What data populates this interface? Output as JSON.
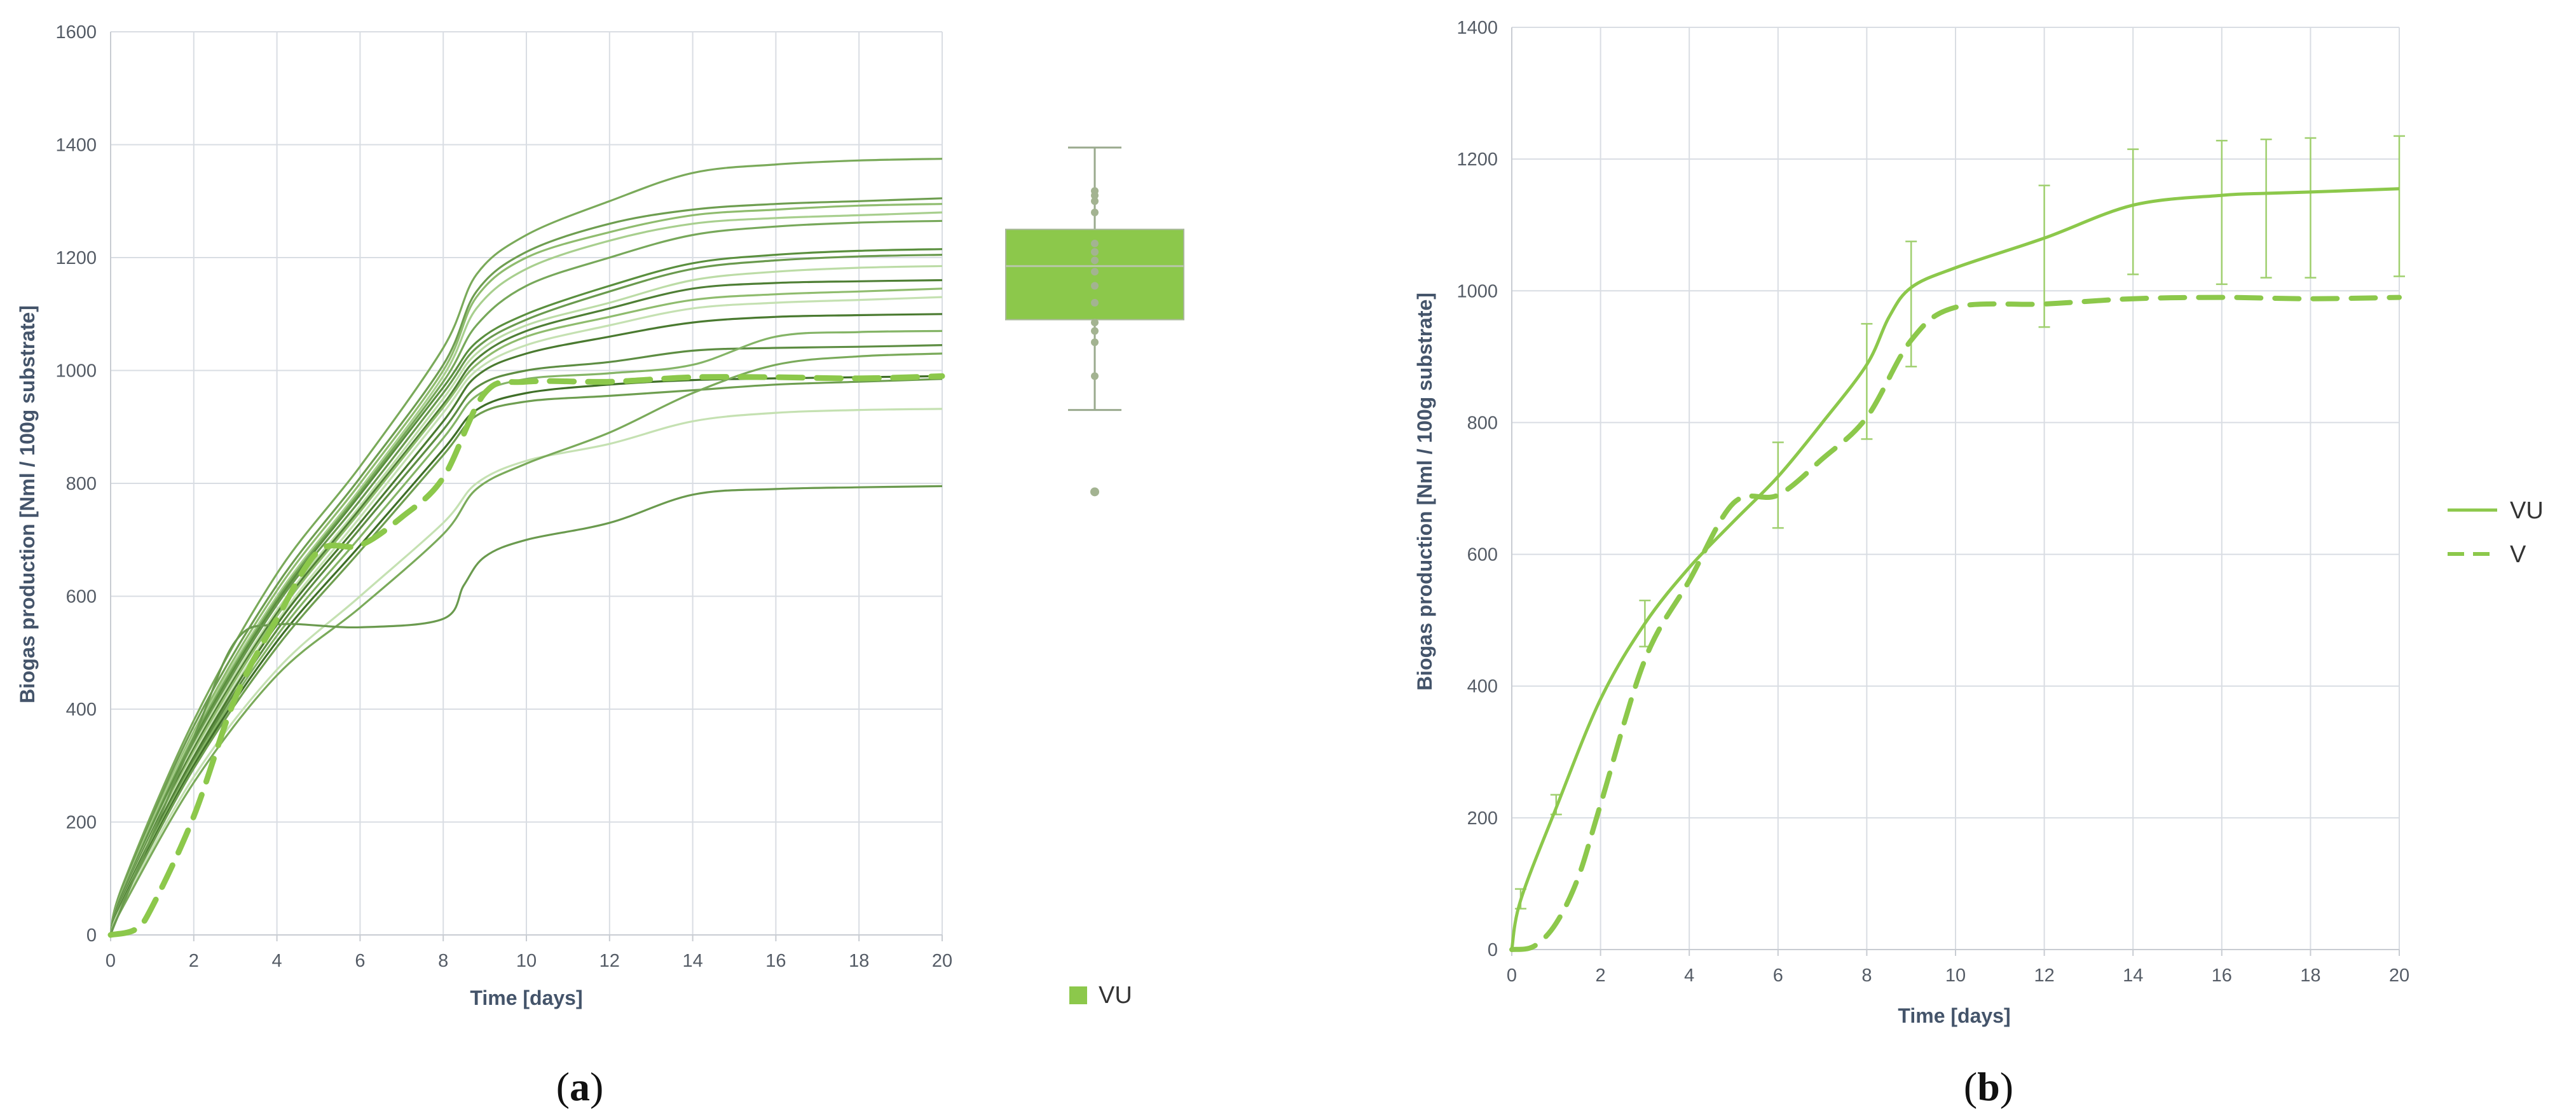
{
  "chart_data": [
    {
      "panel": "(a)",
      "type": "line",
      "title": "",
      "xlabel": "Time [days]",
      "ylabel": "Biogas production [Nml / 100g substrate]",
      "xlim": [
        0,
        20
      ],
      "ylim": [
        0,
        1600
      ],
      "xticks": [
        0,
        2,
        4,
        6,
        8,
        10,
        12,
        14,
        16,
        18,
        20
      ],
      "yticks": [
        0,
        200,
        400,
        600,
        800,
        1000,
        1200,
        1400,
        1600
      ],
      "grid": true,
      "legend": {
        "position": "bottom-right",
        "entries": [
          "VU"
        ]
      },
      "replicate_series": [
        {
          "color": "#7aaa5a",
          "x": [
            0,
            0.3,
            2,
            4,
            6,
            8,
            8.8,
            10,
            12,
            14,
            16,
            18,
            20
          ],
          "y": [
            0,
            90,
            380,
            640,
            830,
            1040,
            1170,
            1240,
            1300,
            1350,
            1365,
            1372,
            1375
          ]
        },
        {
          "color": "#6e9e50",
          "x": [
            0,
            0.3,
            2,
            4,
            6,
            8,
            8.8,
            10,
            12,
            14,
            16,
            18,
            20
          ],
          "y": [
            0,
            85,
            370,
            620,
            810,
            1010,
            1140,
            1210,
            1260,
            1285,
            1295,
            1300,
            1305
          ]
        },
        {
          "color": "#8fbc6e",
          "x": [
            0,
            0.3,
            2,
            4,
            6,
            8,
            8.8,
            10,
            12,
            14,
            16,
            18,
            20
          ],
          "y": [
            0,
            80,
            360,
            610,
            800,
            1000,
            1130,
            1200,
            1245,
            1275,
            1285,
            1292,
            1295
          ]
        },
        {
          "color": "#a8cf8e",
          "x": [
            0,
            0.3,
            2,
            4,
            6,
            8,
            8.8,
            10,
            12,
            14,
            16,
            18,
            20
          ],
          "y": [
            0,
            80,
            355,
            600,
            790,
            990,
            1110,
            1180,
            1230,
            1260,
            1270,
            1275,
            1280
          ]
        },
        {
          "color": "#77a85a",
          "x": [
            0,
            0.3,
            2,
            4,
            6,
            8,
            8.8,
            10,
            12,
            14,
            16,
            18,
            20
          ],
          "y": [
            0,
            78,
            350,
            595,
            785,
            980,
            1080,
            1150,
            1200,
            1240,
            1255,
            1262,
            1265
          ]
        },
        {
          "color": "#5a8f3e",
          "x": [
            0,
            0.3,
            2,
            4,
            6,
            8,
            8.8,
            10,
            12,
            14,
            16,
            18,
            20
          ],
          "y": [
            0,
            75,
            345,
            590,
            780,
            970,
            1050,
            1100,
            1150,
            1190,
            1205,
            1212,
            1215
          ]
        },
        {
          "color": "#6a9a4e",
          "x": [
            0,
            0.3,
            2,
            4,
            6,
            8,
            8.8,
            10,
            12,
            14,
            16,
            18,
            20
          ],
          "y": [
            0,
            75,
            340,
            585,
            770,
            960,
            1040,
            1090,
            1140,
            1180,
            1195,
            1202,
            1205
          ]
        },
        {
          "color": "#bcdca6",
          "x": [
            0,
            0.3,
            2,
            4,
            6,
            8,
            8.8,
            10,
            12,
            14,
            16,
            18,
            20
          ],
          "y": [
            0,
            72,
            335,
            575,
            760,
            950,
            1030,
            1080,
            1120,
            1160,
            1175,
            1182,
            1185
          ]
        },
        {
          "color": "#4f7f35",
          "x": [
            0,
            0.3,
            2,
            4,
            6,
            8,
            8.8,
            10,
            12,
            14,
            16,
            18,
            20
          ],
          "y": [
            0,
            72,
            330,
            570,
            755,
            940,
            1020,
            1070,
            1110,
            1145,
            1155,
            1158,
            1160
          ]
        },
        {
          "color": "#8fbc6e",
          "x": [
            0,
            0.3,
            2,
            4,
            6,
            8,
            8.8,
            10,
            12,
            14,
            16,
            18,
            20
          ],
          "y": [
            0,
            70,
            325,
            565,
            750,
            935,
            1010,
            1060,
            1095,
            1125,
            1135,
            1140,
            1145
          ]
        },
        {
          "color": "#c5e1b2",
          "x": [
            0,
            0.3,
            2,
            4,
            6,
            8,
            8.8,
            10,
            12,
            14,
            16,
            18,
            20
          ],
          "y": [
            0,
            68,
            320,
            555,
            740,
            925,
            1000,
            1045,
            1080,
            1110,
            1120,
            1125,
            1130
          ]
        },
        {
          "color": "#4a7a30",
          "x": [
            0,
            0.3,
            2,
            4,
            6,
            8,
            8.8,
            10,
            12,
            14,
            16,
            18,
            20
          ],
          "y": [
            0,
            68,
            315,
            550,
            730,
            910,
            990,
            1030,
            1060,
            1085,
            1095,
            1098,
            1100
          ]
        },
        {
          "color": "#5d8d42",
          "x": [
            0,
            0.3,
            2,
            4,
            6,
            8,
            8.8,
            10,
            12,
            14,
            16,
            18,
            20
          ],
          "y": [
            0,
            66,
            310,
            540,
            720,
            895,
            970,
            1000,
            1015,
            1035,
            1040,
            1042,
            1045
          ]
        },
        {
          "color": "#84b466",
          "x": [
            0,
            0.3,
            2,
            4,
            6,
            8,
            8.8,
            10,
            12,
            14,
            16,
            18,
            20
          ],
          "y": [
            0,
            65,
            305,
            530,
            705,
            880,
            955,
            985,
            995,
            1010,
            1060,
            1068,
            1070
          ]
        },
        {
          "color": "#3f6f28",
          "x": [
            0,
            0.3,
            2,
            4,
            6,
            8,
            8.8,
            10,
            12,
            14,
            16,
            18,
            20
          ],
          "y": [
            0,
            62,
            300,
            520,
            690,
            860,
            930,
            960,
            975,
            983,
            986,
            988,
            990
          ]
        },
        {
          "color": "#6e9e50",
          "x": [
            0,
            0.3,
            2,
            4,
            6,
            8,
            8.8,
            10,
            12,
            14,
            16,
            18,
            20
          ],
          "y": [
            0,
            60,
            295,
            510,
            680,
            850,
            920,
            945,
            955,
            965,
            975,
            980,
            985
          ]
        },
        {
          "color": "#c5e1b2",
          "x": [
            0,
            0.3,
            2,
            4,
            6,
            8,
            8.8,
            10,
            12,
            14,
            16,
            18,
            20
          ],
          "y": [
            0,
            55,
            280,
            470,
            600,
            730,
            800,
            840,
            870,
            910,
            925,
            930,
            932
          ]
        },
        {
          "color": "#7aaa5a",
          "x": [
            0,
            0.3,
            2,
            4,
            6,
            8,
            8.8,
            10,
            12,
            14,
            16,
            18,
            20
          ],
          "y": [
            0,
            50,
            270,
            460,
            580,
            710,
            790,
            835,
            890,
            960,
            1010,
            1025,
            1030
          ]
        },
        {
          "color": "#6a9a4e",
          "x": [
            0,
            0.3,
            2,
            3,
            4,
            6,
            8,
            8.5,
            9,
            10,
            12,
            14,
            16,
            18,
            20
          ],
          "y": [
            0,
            55,
            350,
            520,
            550,
            545,
            560,
            620,
            670,
            700,
            730,
            780,
            790,
            793,
            795
          ]
        }
      ],
      "mean_series": {
        "style": "dashed",
        "color": "#8cc84b",
        "x": [
          0,
          0.6,
          1,
          2,
          3,
          4,
          5,
          6,
          7,
          8,
          9,
          10,
          12,
          14,
          16,
          18,
          20
        ],
        "y": [
          0,
          10,
          50,
          210,
          420,
          560,
          680,
          690,
          740,
          810,
          960,
          980,
          980,
          988,
          988,
          986,
          990
        ]
      },
      "boxplot": {
        "name": "VU",
        "color": "#8cc84b",
        "whisker_low": 930,
        "q1": 1090,
        "median": 1185,
        "q3": 1250,
        "whisker_high": 1395,
        "outliers": [
          785
        ],
        "points": [
          990,
          1050,
          1070,
          1085,
          1120,
          1150,
          1175,
          1195,
          1210,
          1225,
          1280,
          1300,
          1310,
          1318
        ]
      }
    },
    {
      "panel": "(b)",
      "type": "line",
      "title": "",
      "xlabel": "Time [days]",
      "ylabel": "Biogas production [Nml / 100g substrate]",
      "xlim": [
        0,
        20
      ],
      "ylim": [
        0,
        1400
      ],
      "xticks": [
        0,
        2,
        4,
        6,
        8,
        10,
        12,
        14,
        16,
        18,
        20
      ],
      "yticks": [
        0,
        200,
        400,
        600,
        800,
        1000,
        1200,
        1400
      ],
      "grid": true,
      "legend": {
        "position": "right",
        "entries": [
          "VU",
          "V"
        ]
      },
      "series": [
        {
          "name": "VU",
          "style": "solid",
          "color": "#8cc84b",
          "x": [
            0,
            0.2,
            1,
            2,
            3,
            4,
            5,
            6,
            7,
            8,
            8.5,
            9,
            10,
            12,
            14,
            16,
            17,
            18,
            20
          ],
          "y": [
            0,
            75,
            215,
            380,
            495,
            580,
            650,
            718,
            800,
            888,
            960,
            1005,
            1035,
            1080,
            1130,
            1145,
            1148,
            1150,
            1155
          ],
          "error_bars": {
            "x": [
              0.2,
              1,
              3,
              6,
              8,
              9,
              12,
              14,
              16,
              17,
              18,
              20
            ],
            "low": [
              62,
              205,
              460,
              640,
              775,
              885,
              945,
              1025,
              1010,
              1020,
              1020,
              1022
            ],
            "high": [
              92,
              235,
              530,
              770,
              950,
              1075,
              1160,
              1215,
              1228,
              1230,
              1232,
              1235
            ]
          }
        },
        {
          "name": "V",
          "style": "dashed",
          "color": "#8cc84b",
          "x": [
            0,
            0.5,
            1,
            1.5,
            2,
            3,
            4,
            5,
            6,
            7,
            8,
            9,
            10,
            12,
            14,
            16,
            18,
            20
          ],
          "y": [
            0,
            5,
            40,
            110,
            220,
            440,
            560,
            678,
            690,
            745,
            808,
            925,
            975,
            980,
            988,
            990,
            988,
            990
          ]
        }
      ]
    }
  ],
  "panel_labels": {
    "a": "a",
    "b": "b"
  },
  "legend_a": {
    "label": "VU"
  },
  "legend_b": {
    "labels": [
      "VU",
      "V"
    ]
  }
}
